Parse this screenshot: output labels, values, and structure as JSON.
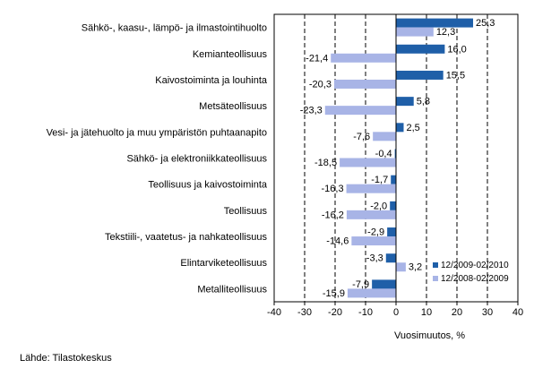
{
  "chart_data": {
    "type": "bar",
    "orientation": "horizontal",
    "categories": [
      "Sähkö-, kaasu-, lämpö- ja ilmastointihuolto",
      "Kemianteollisuus",
      "Kaivostoiminta ja louhinta",
      "Metsäteollisuus",
      "Vesi- ja jätehuolto ja muu ympäristön puhtaanapito",
      "Sähkö- ja elektroniikkateollisuus",
      "Teollisuus ja kaivostoiminta",
      "Teollisuus",
      "Tekstiili-, vaatetus- ja nahkateollisuus",
      "Elintarviketeollisuus",
      "Metalliteollisuus"
    ],
    "series": [
      {
        "name": "12/2009-02/2010",
        "color": "#1f5fa8",
        "values": [
          25.3,
          16.0,
          15.5,
          5.8,
          2.5,
          -0.4,
          -1.7,
          -2.0,
          -2.9,
          -3.3,
          -7.9
        ],
        "labels": [
          "25,3",
          "16,0",
          "15,5",
          "5,8",
          "2,5",
          "-0,4",
          "-1,7",
          "-2,0",
          "-2,9",
          "-3,3",
          "-7,9"
        ]
      },
      {
        "name": "12/2008-02/2009",
        "color": "#a8b4e6",
        "values": [
          12.3,
          -21.4,
          -20.3,
          -23.3,
          -7.6,
          -18.5,
          -16.3,
          -16.2,
          -14.6,
          3.2,
          -15.9
        ],
        "labels": [
          "12,3",
          "-21,4",
          "-20,3",
          "-23,3",
          "-7,6",
          "-18,5",
          "-16,3",
          "-16,2",
          "-14,6",
          "3,2",
          "-15,9"
        ]
      }
    ],
    "xlim": [
      -40,
      40
    ],
    "xticks": [
      -40,
      -30,
      -20,
      -10,
      0,
      10,
      20,
      30,
      40
    ],
    "xlabel": "Vuosimuutos, %",
    "legend_position": "bottom-right",
    "grid": "vertical dashed"
  },
  "source": "Lähde: Tilastokeskus"
}
